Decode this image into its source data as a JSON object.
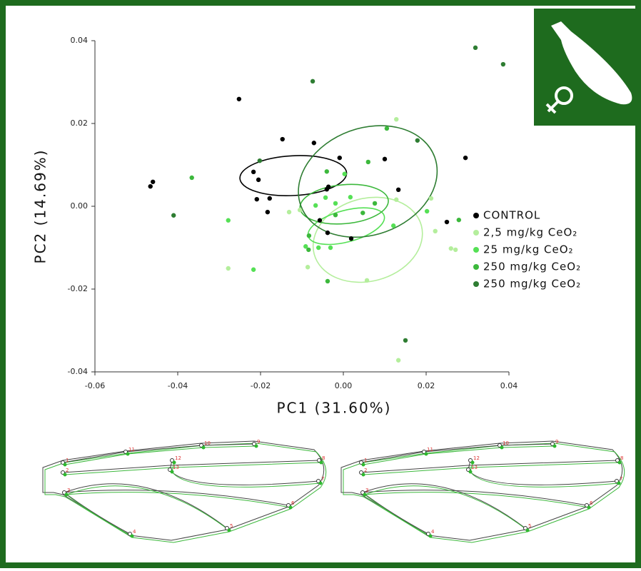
{
  "chart_data": {
    "type": "scatter",
    "x_label": "PC1 (31.60%)",
    "y_label": "PC2 (14.69%)",
    "xlim": [
      -0.06,
      0.04
    ],
    "ylim": [
      -0.04,
      0.04
    ],
    "xticks": [
      -0.06,
      -0.04,
      -0.02,
      {
        "value": 0,
        "label": "0.00"
      },
      0.02,
      0.04
    ],
    "yticks": [
      -0.04,
      -0.02,
      {
        "value": 0,
        "label": "0.00"
      },
      0.02,
      0.04
    ],
    "series": [
      {
        "name": "CONTROL",
        "color": "#000000",
        "x": [
          -0.0466,
          -0.046,
          -0.0252,
          -0.0217,
          -0.0205,
          -0.0147,
          -0.0209,
          -0.0183,
          -0.0178,
          -0.0071,
          -0.0057,
          -0.004,
          -0.0036,
          -0.0009,
          0.01,
          0.0133,
          0.0295,
          0.025,
          -0.0038,
          0.0019
        ],
        "y": [
          0.0048,
          0.0059,
          0.0259,
          0.0083,
          0.0064,
          0.0162,
          0.0017,
          -0.0014,
          0.0019,
          0.0153,
          -0.0034,
          0.0041,
          0.0047,
          0.0117,
          0.0114,
          0.004,
          0.0117,
          -0.0038,
          -0.0064,
          -0.0078
        ],
        "ellipse": {
          "cx": -0.0121,
          "cy": 0.0074,
          "rx": 0.0129,
          "ry": 0.0048,
          "angle": 3
        }
      },
      {
        "name": "2,5 mg/kg CeO₂",
        "color": "#b4ee9c",
        "x": [
          0.0128,
          -0.0086,
          -0.0278,
          0.0057,
          0.0133,
          0.0222,
          0.026,
          0.0271,
          -0.0131,
          -0.0105,
          0.0212,
          0.0128
        ],
        "y": [
          0.021,
          -0.0147,
          -0.015,
          -0.0179,
          -0.0372,
          -0.006,
          -0.0102,
          -0.0105,
          -0.0014,
          -0.0009,
          0.0019,
          0.0016
        ],
        "ellipse": {
          "cx": 0.0059,
          "cy": -0.0081,
          "rx": 0.0134,
          "ry": 0.01,
          "angle": 15
        }
      },
      {
        "name": "25 mg/kg CeO₂",
        "color": "#55e055",
        "x": [
          0.0003,
          -0.0043,
          -0.0019,
          0.0017,
          -0.0067,
          -0.006,
          -0.0031,
          0.0121,
          0.0202,
          -0.0278,
          -0.0217,
          -0.0091
        ],
        "y": [
          0.0078,
          0.0021,
          0.0007,
          0.0022,
          0.0002,
          -0.01,
          -0.01,
          -0.0047,
          -0.0012,
          -0.0034,
          -0.0153,
          -0.0097
        ],
        "ellipse": {
          "cx": 0.0007,
          "cy": -0.0048,
          "rx": 0.0095,
          "ry": 0.0038,
          "angle": 15
        }
      },
      {
        "name": "250 mg/kg CeO₂",
        "color": "#3cb83c",
        "x": [
          0.0105,
          0.006,
          -0.004,
          0.0047,
          0.0076,
          -0.0019,
          -0.0083,
          -0.0084,
          -0.0038,
          0.0279,
          -0.0366
        ],
        "y": [
          0.0188,
          0.0107,
          0.0084,
          -0.0016,
          0.0007,
          -0.0021,
          -0.0071,
          -0.0105,
          -0.0181,
          -0.0033,
          0.0069
        ],
        "ellipse": {
          "cx": 0.0002,
          "cy": 0.0005,
          "rx": 0.0107,
          "ry": 0.0047,
          "angle": 5
        }
      },
      {
        "name": "250 mg/kg CeO₂",
        "color": "#2e7d32",
        "x": [
          -0.0074,
          0.0319,
          0.0386,
          -0.041,
          0.015,
          0.0179,
          -0.0202
        ],
        "y": [
          0.0302,
          0.0383,
          0.0343,
          -0.0022,
          -0.0324,
          0.0159,
          0.011
        ],
        "ellipse": {
          "cx": 0.0059,
          "cy": 0.006,
          "rx": 0.0172,
          "ry": 0.0129,
          "angle": 20
        }
      }
    ]
  },
  "wing_landmark_labels": [
    "1",
    "2",
    "3",
    "4",
    "5",
    "6",
    "7",
    "8",
    "9",
    "10",
    "11",
    "12",
    "13"
  ]
}
